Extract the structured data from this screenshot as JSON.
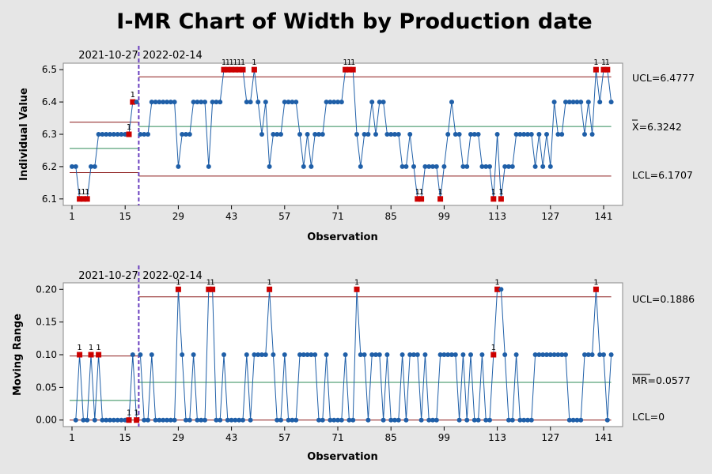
{
  "chart_data": {
    "type": "line",
    "title": "I-MR Chart of Width by Production date",
    "stages": [
      "2021-10-27",
      "2022-02-14"
    ],
    "xlabel": "Observation",
    "x_ticks": [
      "1",
      "15",
      "29",
      "43",
      "57",
      "71",
      "85",
      "99",
      "113",
      "127",
      "141"
    ],
    "x_range": [
      1,
      141
    ],
    "individual": {
      "ylabel": "Individual Value",
      "ylim": [
        6.08,
        6.52
      ],
      "y_ticks": [
        "6.1",
        "6.2",
        "6.3",
        "6.4",
        "6.5"
      ],
      "ucl_label": "UCL=6.4777",
      "center_label": "X=6.3242",
      "lcl_label": "LCL=6.1707",
      "values": [
        6.2,
        6.2,
        6.1,
        6.1,
        6.1,
        6.2,
        6.2,
        6.3,
        6.3,
        6.3,
        6.3,
        6.3,
        6.3,
        6.3,
        6.3,
        6.3,
        6.4,
        6.4,
        6.3,
        6.3,
        6.3,
        6.4,
        6.4,
        6.4,
        6.4,
        6.4,
        6.4,
        6.4,
        6.2,
        6.3,
        6.3,
        6.3,
        6.4,
        6.4,
        6.4,
        6.4,
        6.2,
        6.4,
        6.4,
        6.4,
        6.5,
        6.5,
        6.5,
        6.5,
        6.5,
        6.5,
        6.4,
        6.4,
        6.5,
        6.4,
        6.3,
        6.4,
        6.2,
        6.3,
        6.3,
        6.3,
        6.4,
        6.4,
        6.4,
        6.4,
        6.3,
        6.2,
        6.3,
        6.2,
        6.3,
        6.3,
        6.3,
        6.4,
        6.4,
        6.4,
        6.4,
        6.4,
        6.5,
        6.5,
        6.5,
        6.3,
        6.2,
        6.3,
        6.3,
        6.4,
        6.3,
        6.4,
        6.4,
        6.3,
        6.3,
        6.3,
        6.3,
        6.2,
        6.2,
        6.3,
        6.2,
        6.1,
        6.1,
        6.2,
        6.2,
        6.2,
        6.2,
        6.1,
        6.2,
        6.3,
        6.4,
        6.3,
        6.3,
        6.2,
        6.2,
        6.3,
        6.3,
        6.3,
        6.2,
        6.2,
        6.2,
        6.1,
        6.3,
        6.1,
        6.2,
        6.2,
        6.2,
        6.3,
        6.3,
        6.3,
        6.3,
        6.3,
        6.2,
        6.3,
        6.2,
        6.3,
        6.2,
        6.4,
        6.3,
        6.3,
        6.4,
        6.4,
        6.4,
        6.4,
        6.4,
        6.3,
        6.4,
        6.3,
        6.5,
        6.4,
        6.5,
        6.5,
        6.4
      ],
      "flagged": [
        3,
        4,
        5,
        16,
        17,
        41,
        42,
        43,
        44,
        45,
        46,
        49,
        73,
        74,
        75,
        92,
        93,
        98,
        112,
        114,
        139,
        141,
        142
      ],
      "flag_label": "1",
      "stage1_limits": {
        "ucl": 6.3375,
        "center": 6.2563,
        "lcl": 6.1813
      },
      "stage2_limits": {
        "ucl": 6.4777,
        "center": 6.3242,
        "lcl": 6.1707
      }
    },
    "moving_range": {
      "ylabel": "Moving Range",
      "ylim": [
        -0.01,
        0.21
      ],
      "y_ticks": [
        "0.00",
        "0.05",
        "0.10",
        "0.15",
        "0.20"
      ],
      "ucl_label": "UCL=0.1886",
      "center_label": "MR=0.0577",
      "lcl_label": "LCL=0",
      "values": [
        null,
        0,
        0.1,
        0,
        0,
        0.1,
        0,
        0.1,
        0,
        0,
        0,
        0,
        0,
        0,
        0,
        0,
        0.1,
        0,
        0.1,
        0,
        0,
        0.1,
        0,
        0,
        0,
        0,
        0,
        0,
        0.2,
        0.1,
        0,
        0,
        0.1,
        0,
        0,
        0,
        0.2,
        0.2,
        0,
        0,
        0.1,
        0,
        0,
        0,
        0,
        0,
        0.1,
        0,
        0.1,
        0.1,
        0.1,
        0.1,
        0.2,
        0.1,
        0,
        0,
        0.1,
        0,
        0,
        0,
        0.1,
        0.1,
        0.1,
        0.1,
        0.1,
        0,
        0,
        0.1,
        0,
        0,
        0,
        0,
        0.1,
        0,
        0,
        0.2,
        0.1,
        0.1,
        0,
        0.1,
        0.1,
        0.1,
        0,
        0.1,
        0,
        0,
        0,
        0.1,
        0,
        0.1,
        0.1,
        0.1,
        0,
        0.1,
        0,
        0,
        0,
        0.1,
        0.1,
        0.1,
        0.1,
        0.1,
        0,
        0.1,
        0,
        0.1,
        0,
        0,
        0.1,
        0,
        0,
        0.1,
        0.2,
        0.2,
        0.1,
        0,
        0,
        0.1,
        0,
        0,
        0,
        0,
        0.1,
        0.1,
        0.1,
        0.1,
        0.1,
        0.1,
        0.1,
        0.1,
        0.1,
        0,
        0,
        0,
        0,
        0.1,
        0.1,
        0.1,
        0.2,
        0.1,
        0.1,
        0,
        0.1
      ],
      "flagged": [
        3,
        6,
        8,
        16,
        18,
        29,
        37,
        38,
        53,
        76,
        112,
        113,
        139
      ],
      "flag_label": "1",
      "stage1_limits": {
        "ucl": 0.0981,
        "center": 0.03,
        "lcl": 0
      },
      "stage2_limits": {
        "ucl": 0.1886,
        "center": 0.0577,
        "lcl": 0
      }
    },
    "colors": {
      "background": "#e6e6e6",
      "plot_area": "#ffffff",
      "series": "#1f5fa8",
      "out_of_control": "#cc0000",
      "limit": "#8b1a1a",
      "center": "#2e8b57",
      "stage_divider": "#6a3fbf"
    }
  }
}
